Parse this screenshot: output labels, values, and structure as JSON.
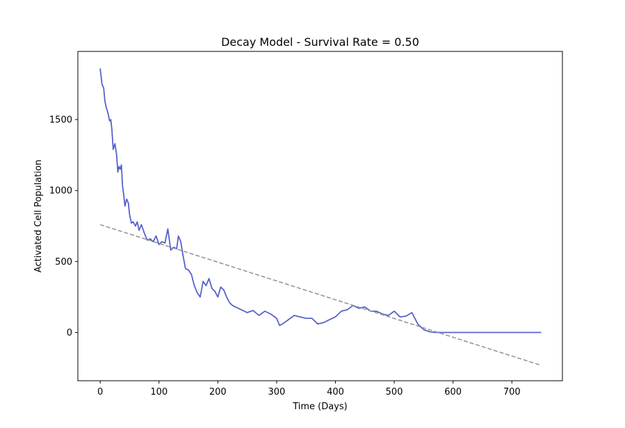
{
  "chart_data": {
    "type": "line",
    "title": "Decay Model - Survival Rate = 0.50",
    "xlabel": "Time (Days)",
    "ylabel": "Activated Cell Population",
    "xlim": [
      -38,
      786
    ],
    "ylim": [
      -340,
      1980
    ],
    "xticks": [
      0,
      100,
      200,
      300,
      400,
      500,
      600,
      700
    ],
    "yticks": [
      0,
      500,
      1000,
      1500
    ],
    "grid": false,
    "colors": {
      "population": "#5563c8",
      "trend": "#969696"
    },
    "series": [
      {
        "style": "solid",
        "x": [
          0,
          3,
          6,
          8,
          10,
          13,
          16,
          18,
          20,
          22,
          25,
          28,
          30,
          32,
          34,
          36,
          38,
          40,
          42,
          45,
          48,
          50,
          53,
          56,
          60,
          63,
          66,
          70,
          75,
          80,
          85,
          90,
          95,
          100,
          105,
          110,
          115,
          120,
          125,
          130,
          133,
          137,
          140,
          145,
          150,
          155,
          160,
          165,
          170,
          175,
          180,
          185,
          190,
          195,
          200,
          205,
          210,
          215,
          220,
          225,
          230,
          240,
          250,
          260,
          270,
          280,
          290,
          300,
          305,
          310,
          320,
          330,
          340,
          350,
          360,
          370,
          380,
          390,
          400,
          410,
          420,
          430,
          440,
          450,
          460,
          470,
          480,
          490,
          500,
          510,
          520,
          530,
          540,
          550,
          560,
          570,
          580,
          600,
          650,
          700,
          750
        ],
        "y": [
          1860,
          1750,
          1720,
          1630,
          1590,
          1550,
          1490,
          1500,
          1420,
          1290,
          1330,
          1250,
          1130,
          1170,
          1150,
          1180,
          1030,
          970,
          890,
          940,
          910,
          830,
          770,
          780,
          750,
          780,
          720,
          760,
          700,
          650,
          660,
          640,
          680,
          620,
          640,
          630,
          730,
          580,
          600,
          590,
          680,
          640,
          560,
          450,
          440,
          410,
          330,
          280,
          250,
          360,
          330,
          380,
          310,
          290,
          250,
          320,
          300,
          250,
          210,
          190,
          180,
          160,
          140,
          155,
          120,
          150,
          130,
          100,
          50,
          60,
          90,
          120,
          110,
          100,
          100,
          60,
          70,
          90,
          110,
          150,
          160,
          190,
          170,
          180,
          150,
          150,
          130,
          120,
          150,
          110,
          115,
          140,
          60,
          20,
          5,
          0,
          0,
          0,
          0,
          0,
          0
        ]
      },
      {
        "style": "dashed",
        "x": [
          0,
          750
        ],
        "y": [
          760,
          -232
        ]
      }
    ]
  }
}
